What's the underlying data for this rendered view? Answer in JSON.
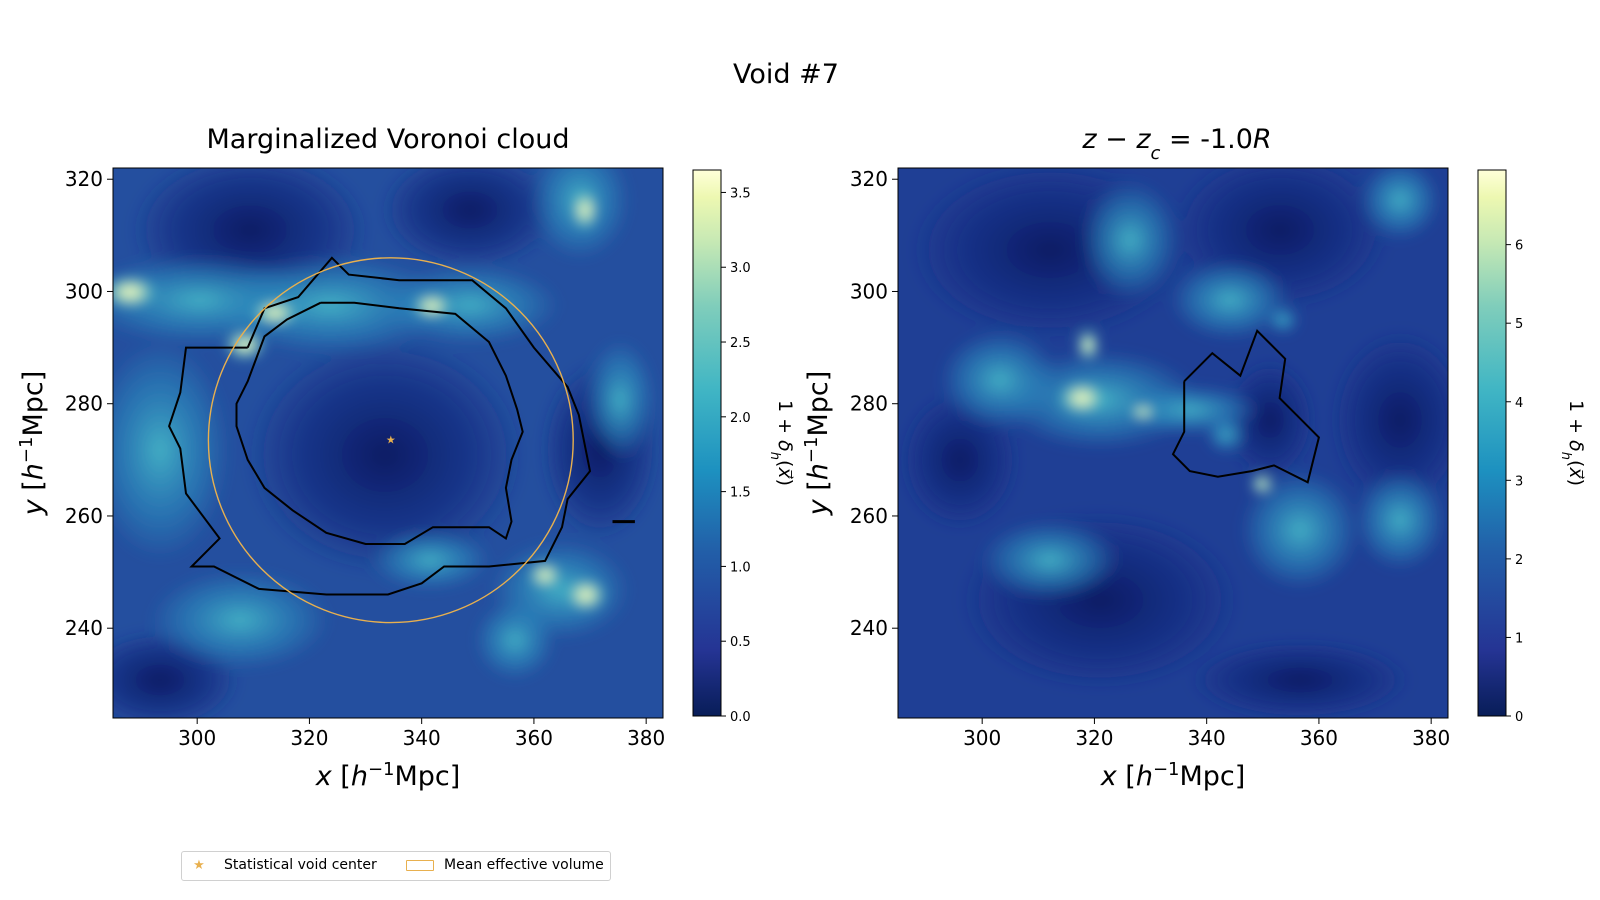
{
  "figure": {
    "suptitle": "Void #7"
  },
  "chart_data": [
    {
      "type": "heatmap",
      "title": "Marginalized Voronoi cloud",
      "xlabel": "x [h⁻¹Mpc]",
      "ylabel": "y [h⁻¹Mpc]",
      "xlim": [
        285,
        383
      ],
      "ylim": [
        224,
        322
      ],
      "xticks": [
        300,
        320,
        340,
        360,
        380
      ],
      "yticks": [
        240,
        260,
        280,
        300,
        320
      ],
      "colorbar": {
        "label": "1 + δh(x⃗)",
        "range": [
          0.0,
          3.65
        ],
        "ticks": [
          "0.0",
          "0.5",
          "1.0",
          "1.5",
          "2.0",
          "2.5",
          "3.0",
          "3.5"
        ],
        "tick_values": [
          0,
          0.5,
          1.0,
          1.5,
          2.0,
          2.5,
          3.0,
          3.5
        ],
        "colormap": "YlGnBu_r"
      },
      "void_center": [
        334.5,
        273.5
      ],
      "mean_effective_radius": 32.5,
      "outer_contour": [
        [
          309,
          290
        ],
        [
          312,
          297
        ],
        [
          318,
          299
        ],
        [
          324,
          306
        ],
        [
          327,
          303
        ],
        [
          336,
          302
        ],
        [
          349,
          302
        ],
        [
          355,
          297
        ],
        [
          360,
          290
        ],
        [
          366,
          283
        ],
        [
          368,
          278
        ],
        [
          370,
          268
        ],
        [
          366,
          263
        ],
        [
          365,
          258
        ],
        [
          362,
          252
        ],
        [
          352,
          251
        ],
        [
          344,
          251
        ],
        [
          340,
          248
        ],
        [
          334,
          246
        ],
        [
          323,
          246
        ],
        [
          311,
          247
        ],
        [
          303,
          251
        ],
        [
          299,
          251
        ],
        [
          304,
          256
        ],
        [
          298,
          264
        ],
        [
          297,
          272
        ],
        [
          295,
          276
        ],
        [
          297,
          282
        ],
        [
          298,
          290
        ],
        [
          309,
          290
        ]
      ],
      "inner_contour": [
        [
          322,
          298
        ],
        [
          328,
          298
        ],
        [
          336,
          297
        ],
        [
          346,
          296
        ],
        [
          352,
          291
        ],
        [
          355,
          285
        ],
        [
          357,
          279
        ],
        [
          358,
          275
        ],
        [
          356,
          270
        ],
        [
          355,
          265
        ],
        [
          356,
          259
        ],
        [
          355,
          256
        ],
        [
          352,
          258
        ],
        [
          342,
          258
        ],
        [
          337,
          255
        ],
        [
          330,
          255
        ],
        [
          323,
          257
        ],
        [
          317,
          261
        ],
        [
          312,
          265
        ],
        [
          309,
          270
        ],
        [
          307,
          276
        ],
        [
          307,
          280
        ],
        [
          309,
          284
        ],
        [
          312,
          292
        ],
        [
          316,
          295
        ],
        [
          322,
          298
        ]
      ],
      "small_mark": [
        [
          374,
          259
        ],
        [
          378,
          259
        ]
      ]
    },
    {
      "type": "heatmap",
      "title": "z − z_c = -1.0R",
      "xlabel": "x [h⁻¹Mpc]",
      "ylabel": "y [h⁻¹Mpc]",
      "xlim": [
        285,
        383
      ],
      "ylim": [
        224,
        322
      ],
      "xticks": [
        300,
        320,
        340,
        360,
        380
      ],
      "yticks": [
        240,
        260,
        280,
        300,
        320
      ],
      "colorbar": {
        "label": "1 + δh(x⃗)",
        "range": [
          0,
          6.95
        ],
        "ticks": [
          "0",
          "1",
          "2",
          "3",
          "4",
          "5",
          "6"
        ],
        "tick_values": [
          0,
          1,
          2,
          3,
          4,
          5,
          6
        ],
        "colormap": "YlGnBu_r"
      },
      "contour": [
        [
          336,
          284
        ],
        [
          341,
          289
        ],
        [
          346,
          285
        ],
        [
          349,
          293
        ],
        [
          351,
          291
        ],
        [
          354,
          288
        ],
        [
          353,
          281
        ],
        [
          356,
          278
        ],
        [
          360,
          274
        ],
        [
          358,
          266
        ],
        [
          352,
          269
        ],
        [
          348,
          268
        ],
        [
          342,
          267
        ],
        [
          337,
          268
        ],
        [
          334,
          271
        ],
        [
          336,
          275
        ],
        [
          336,
          280
        ],
        [
          336,
          284
        ]
      ]
    }
  ],
  "legend": {
    "items": [
      {
        "label": "Statistical void center",
        "marker": "star"
      },
      {
        "label": "Mean effective volume",
        "marker": "rect"
      }
    ]
  },
  "colors": {
    "accent": "#e8b04f",
    "contour": "#000000"
  }
}
